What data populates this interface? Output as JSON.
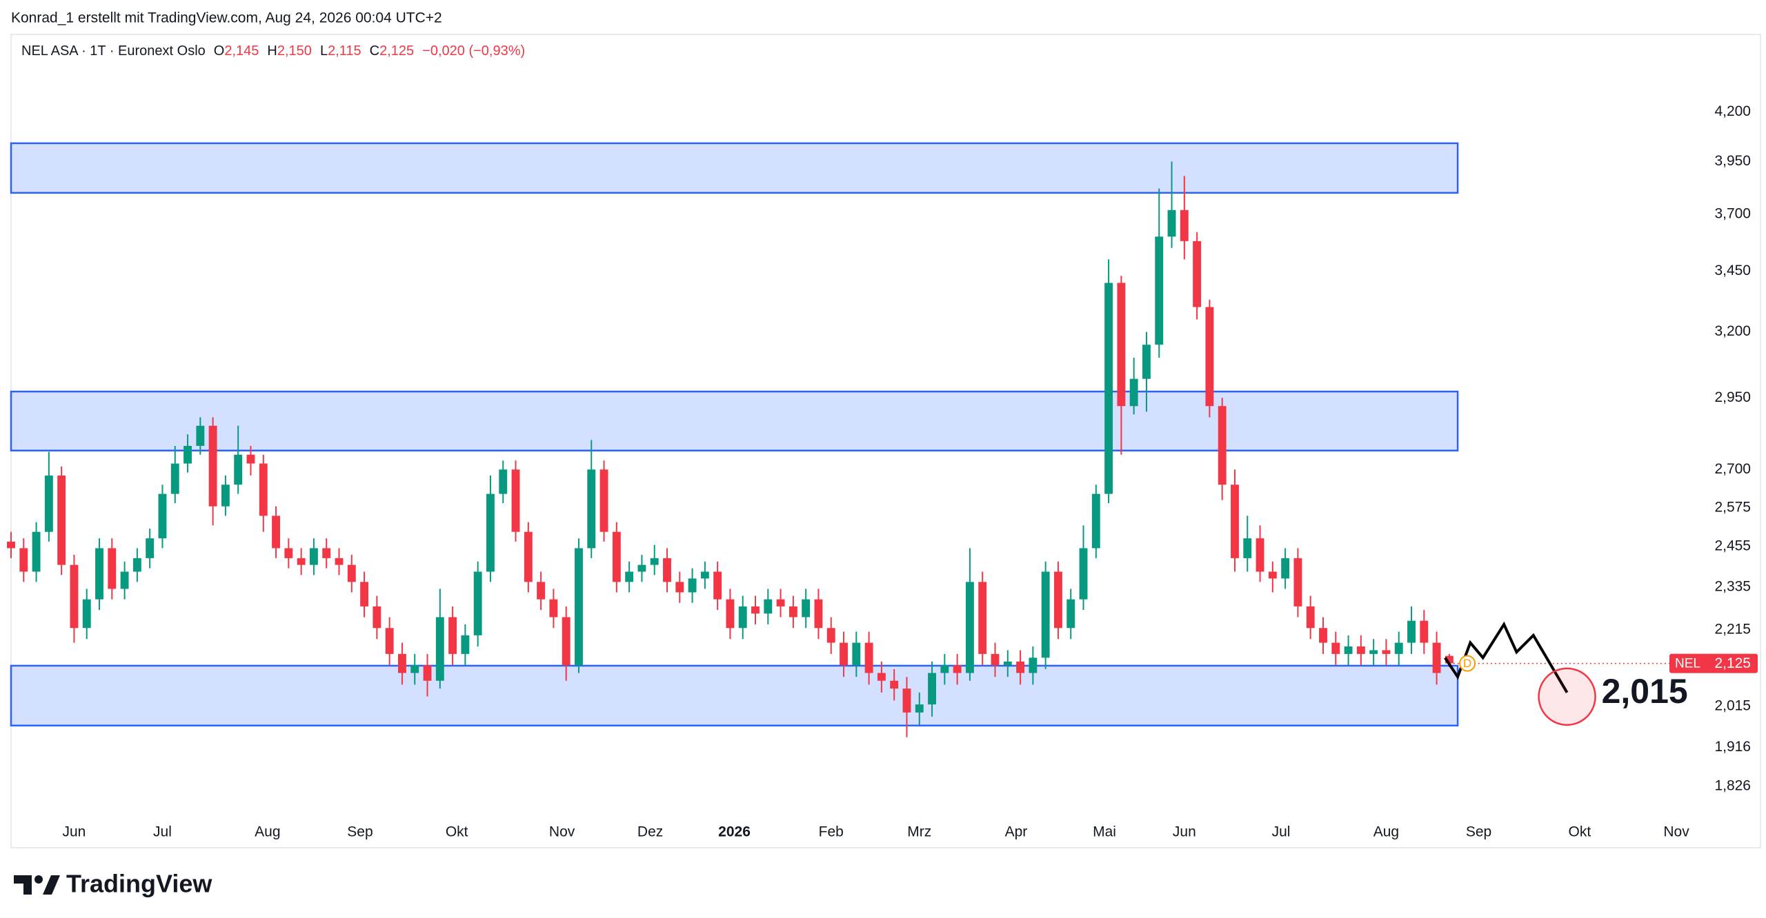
{
  "header": {
    "credit": "Konrad_1 erstellt mit TradingView.com, Aug 24, 2026 00:04 UTC+2"
  },
  "footer": {
    "brand": "TradingView"
  },
  "chart_data": {
    "type": "candlestick",
    "log_scale": true,
    "grid": false,
    "up_color": "#089981",
    "down_color": "#f23645",
    "ohlc_legend": {
      "name": "NEL ASA · 1T · Euronext Oslo",
      "color": "#f23645",
      "items": [
        {
          "key": "O",
          "label": "2,145"
        },
        {
          "key": "H",
          "label": "2,150"
        },
        {
          "key": "L",
          "label": "2,115"
        },
        {
          "key": "C",
          "label": "2,125"
        }
      ],
      "change": "−0,020 (−0,93%)"
    },
    "xlim": [
      0,
      416
    ],
    "ylim": [
      1.763,
      4.436
    ],
    "xticks": [
      {
        "value": 15,
        "label": "Jun"
      },
      {
        "value": 36,
        "label": "Jul"
      },
      {
        "value": 61,
        "label": "Aug"
      },
      {
        "value": 83,
        "label": "Sep"
      },
      {
        "value": 106,
        "label": "Okt"
      },
      {
        "value": 131,
        "label": "Nov"
      },
      {
        "value": 152,
        "label": "Dez"
      },
      {
        "value": 172,
        "label": "2026",
        "bold": true
      },
      {
        "value": 195,
        "label": "Feb"
      },
      {
        "value": 216,
        "label": "Mrz"
      },
      {
        "value": 239,
        "label": "Apr"
      },
      {
        "value": 260,
        "label": "Mai"
      },
      {
        "value": 279,
        "label": "Jun"
      },
      {
        "value": 302,
        "label": "Jul"
      },
      {
        "value": 327,
        "label": "Aug"
      },
      {
        "value": 349,
        "label": "Sep"
      },
      {
        "value": 373,
        "label": "Okt"
      },
      {
        "value": 396,
        "label": "Nov"
      }
    ],
    "yticks": [
      {
        "value": 1.826,
        "label": "1,826"
      },
      {
        "value": 1.916,
        "label": "1,916"
      },
      {
        "value": 2.015,
        "label": "2,015"
      },
      {
        "value": 2.215,
        "label": "2,215"
      },
      {
        "value": 2.335,
        "label": "2,335"
      },
      {
        "value": 2.455,
        "label": "2,455"
      },
      {
        "value": 2.575,
        "label": "2,575"
      },
      {
        "value": 2.7,
        "label": "2,700"
      },
      {
        "value": 2.95,
        "label": "2,950"
      },
      {
        "value": 3.2,
        "label": "3,200"
      },
      {
        "value": 3.45,
        "label": "3,450"
      },
      {
        "value": 3.7,
        "label": "3,700"
      },
      {
        "value": 3.95,
        "label": "3,950"
      },
      {
        "value": 4.2,
        "label": "4,200"
      }
    ],
    "x": [
      0,
      3,
      6,
      9,
      12,
      15,
      18,
      21,
      24,
      27,
      30,
      33,
      36,
      39,
      42,
      45,
      48,
      51,
      54,
      57,
      60,
      63,
      66,
      69,
      72,
      75,
      78,
      81,
      84,
      87,
      90,
      93,
      96,
      99,
      102,
      105,
      108,
      111,
      114,
      117,
      120,
      123,
      126,
      129,
      132,
      135,
      138,
      141,
      144,
      147,
      150,
      153,
      156,
      159,
      162,
      165,
      168,
      171,
      174,
      177,
      180,
      183,
      186,
      189,
      192,
      195,
      198,
      201,
      204,
      207,
      210,
      213,
      216,
      219,
      222,
      225,
      228,
      231,
      234,
      237,
      240,
      243,
      246,
      249,
      252,
      255,
      258,
      261,
      264,
      267,
      270,
      273,
      276,
      279,
      282,
      285,
      288,
      291,
      294,
      297,
      300,
      303,
      306,
      309,
      312,
      315,
      318,
      321,
      324,
      327,
      330,
      333,
      336,
      339,
      342
    ],
    "open": [
      2.47,
      2.45,
      2.38,
      2.5,
      2.68,
      2.4,
      2.22,
      2.3,
      2.45,
      2.33,
      2.38,
      2.42,
      2.48,
      2.62,
      2.72,
      2.78,
      2.85,
      2.58,
      2.65,
      2.75,
      2.72,
      2.55,
      2.45,
      2.42,
      2.4,
      2.45,
      2.42,
      2.4,
      2.35,
      2.28,
      2.22,
      2.15,
      2.1,
      2.12,
      2.08,
      2.25,
      2.15,
      2.2,
      2.38,
      2.62,
      2.7,
      2.5,
      2.35,
      2.3,
      2.25,
      2.12,
      2.45,
      2.7,
      2.5,
      2.35,
      2.38,
      2.4,
      2.42,
      2.35,
      2.32,
      2.36,
      2.38,
      2.3,
      2.22,
      2.28,
      2.26,
      2.3,
      2.28,
      2.25,
      2.3,
      2.22,
      2.18,
      2.12,
      2.18,
      2.1,
      2.08,
      2.06,
      2.0,
      2.02,
      2.1,
      2.12,
      2.1,
      2.35,
      2.15,
      2.12,
      2.13,
      2.1,
      2.14,
      2.38,
      2.22,
      2.3,
      2.45,
      2.62,
      3.4,
      2.92,
      3.02,
      3.15,
      3.6,
      3.72,
      3.58,
      3.3,
      2.92,
      2.65,
      2.42,
      2.48,
      2.38,
      2.36,
      2.42,
      2.28,
      2.22,
      2.18,
      2.15,
      2.17,
      2.15,
      2.16,
      2.15,
      2.18,
      2.24,
      2.18,
      2.145
    ],
    "high": [
      2.5,
      2.48,
      2.53,
      2.76,
      2.71,
      2.43,
      2.33,
      2.48,
      2.48,
      2.41,
      2.45,
      2.51,
      2.65,
      2.78,
      2.82,
      2.88,
      2.88,
      2.68,
      2.85,
      2.78,
      2.75,
      2.58,
      2.48,
      2.45,
      2.48,
      2.48,
      2.45,
      2.43,
      2.38,
      2.31,
      2.25,
      2.18,
      2.15,
      2.15,
      2.33,
      2.28,
      2.23,
      2.41,
      2.68,
      2.73,
      2.73,
      2.53,
      2.38,
      2.33,
      2.28,
      2.48,
      2.8,
      2.73,
      2.53,
      2.41,
      2.43,
      2.46,
      2.45,
      2.38,
      2.39,
      2.41,
      2.41,
      2.33,
      2.31,
      2.31,
      2.33,
      2.33,
      2.31,
      2.33,
      2.33,
      2.25,
      2.21,
      2.21,
      2.21,
      2.13,
      2.11,
      2.09,
      2.05,
      2.13,
      2.15,
      2.15,
      2.45,
      2.38,
      2.18,
      2.16,
      2.16,
      2.17,
      2.41,
      2.41,
      2.33,
      2.52,
      2.65,
      3.5,
      3.43,
      3.1,
      3.2,
      3.82,
      3.95,
      3.88,
      3.62,
      3.33,
      2.95,
      2.7,
      2.55,
      2.52,
      2.41,
      2.45,
      2.45,
      2.31,
      2.25,
      2.21,
      2.2,
      2.2,
      2.19,
      2.19,
      2.21,
      2.28,
      2.27,
      2.21,
      2.15
    ],
    "low": [
      2.42,
      2.35,
      2.35,
      2.47,
      2.37,
      2.18,
      2.19,
      2.27,
      2.3,
      2.3,
      2.35,
      2.39,
      2.45,
      2.59,
      2.69,
      2.75,
      2.52,
      2.55,
      2.62,
      2.68,
      2.5,
      2.42,
      2.39,
      2.37,
      2.37,
      2.39,
      2.37,
      2.32,
      2.25,
      2.19,
      2.12,
      2.07,
      2.07,
      2.04,
      2.06,
      2.12,
      2.12,
      2.17,
      2.35,
      2.59,
      2.47,
      2.32,
      2.27,
      2.22,
      2.08,
      2.1,
      2.42,
      2.47,
      2.32,
      2.32,
      2.35,
      2.37,
      2.32,
      2.29,
      2.29,
      2.33,
      2.27,
      2.19,
      2.19,
      2.23,
      2.23,
      2.25,
      2.22,
      2.22,
      2.19,
      2.15,
      2.09,
      2.09,
      2.07,
      2.05,
      2.03,
      1.94,
      1.97,
      1.99,
      2.07,
      2.07,
      2.08,
      2.12,
      2.09,
      2.09,
      2.07,
      2.07,
      2.11,
      2.19,
      2.19,
      2.27,
      2.42,
      2.59,
      2.75,
      2.89,
      2.9,
      3.1,
      3.55,
      3.5,
      3.25,
      2.88,
      2.6,
      2.38,
      2.38,
      2.35,
      2.32,
      2.33,
      2.25,
      2.19,
      2.15,
      2.12,
      2.12,
      2.12,
      2.12,
      2.12,
      2.12,
      2.15,
      2.15,
      2.07,
      2.115
    ],
    "close": [
      2.45,
      2.38,
      2.5,
      2.68,
      2.4,
      2.22,
      2.3,
      2.45,
      2.33,
      2.38,
      2.42,
      2.48,
      2.62,
      2.72,
      2.78,
      2.85,
      2.58,
      2.65,
      2.75,
      2.72,
      2.55,
      2.45,
      2.42,
      2.4,
      2.45,
      2.42,
      2.4,
      2.35,
      2.28,
      2.22,
      2.15,
      2.1,
      2.12,
      2.08,
      2.25,
      2.15,
      2.2,
      2.38,
      2.62,
      2.7,
      2.5,
      2.35,
      2.3,
      2.25,
      2.12,
      2.45,
      2.7,
      2.5,
      2.35,
      2.38,
      2.4,
      2.42,
      2.35,
      2.32,
      2.36,
      2.38,
      2.3,
      2.22,
      2.28,
      2.26,
      2.3,
      2.28,
      2.25,
      2.3,
      2.22,
      2.18,
      2.12,
      2.18,
      2.1,
      2.08,
      2.06,
      2.0,
      2.02,
      2.1,
      2.12,
      2.1,
      2.35,
      2.15,
      2.12,
      2.13,
      2.1,
      2.14,
      2.38,
      2.22,
      2.3,
      2.45,
      2.62,
      3.4,
      2.92,
      3.02,
      3.15,
      3.6,
      3.72,
      3.58,
      3.3,
      2.92,
      2.65,
      2.42,
      2.48,
      2.38,
      2.36,
      2.42,
      2.28,
      2.22,
      2.18,
      2.15,
      2.17,
      2.15,
      2.16,
      2.15,
      2.18,
      2.24,
      2.18,
      2.1,
      2.125
    ],
    "zones": [
      {
        "x": [
          0,
          344
        ],
        "y": [
          3.8,
          4.04
        ]
      },
      {
        "x": [
          0,
          344
        ],
        "y": [
          2.764,
          2.973
        ]
      },
      {
        "x": [
          0,
          344
        ],
        "y": [
          1.968,
          2.119
        ]
      }
    ],
    "zone_color": "#2962ff",
    "projection": {
      "x": [
        341,
        344,
        347,
        350,
        355,
        358,
        362,
        370
      ],
      "y": [
        2.14,
        2.09,
        2.18,
        2.14,
        2.23,
        2.155,
        2.2,
        2.05
      ],
      "color": "#000000"
    },
    "annotation": "2,015",
    "marker": "D",
    "last_price": {
      "symbol": "NEL",
      "value": 2.125,
      "label": "2,125",
      "color": "#f23645"
    }
  }
}
